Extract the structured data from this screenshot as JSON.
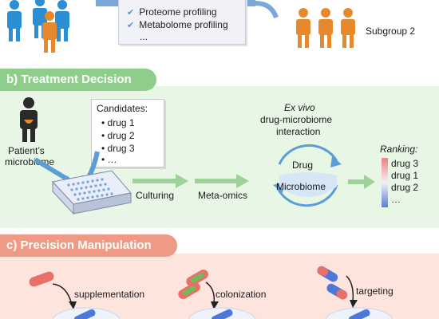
{
  "profiling": {
    "items": [
      "Proteome profiling",
      "Metabolome profiling"
    ],
    "more": "..."
  },
  "subgroup2_label": "Subgroup 2",
  "treatment": {
    "header": "b) Treatment Decision",
    "patient_label": [
      "Patient’s",
      "microbiome"
    ],
    "candidates_title": "Candidates:",
    "candidates": [
      "drug 1",
      "drug 2",
      "drug 3",
      "…"
    ],
    "culturing_label": "Culturing",
    "metaomics_label": "Meta-omics",
    "exvivo_title": "Ex vivo",
    "interaction_title": [
      "drug-microbiome",
      "interaction"
    ],
    "cycle_top": "Drug",
    "cycle_bottom": "Microbiome",
    "ranking_title": "Ranking:",
    "ranking": [
      "drug 3",
      "drug 1",
      "drug 2",
      "…"
    ]
  },
  "manipulation": {
    "header": "c) Precision Manipulation",
    "labels": [
      "supplementation",
      "colonization",
      "targeting"
    ]
  },
  "colors": {
    "blue_people": "#2b8fd6",
    "orange_people": "#e6892d",
    "green_tab": "#8fce8a",
    "red_tab": "#ee9a85",
    "arrow_green": "#9ed29a",
    "cycle_blue": "#5b9ed6"
  }
}
